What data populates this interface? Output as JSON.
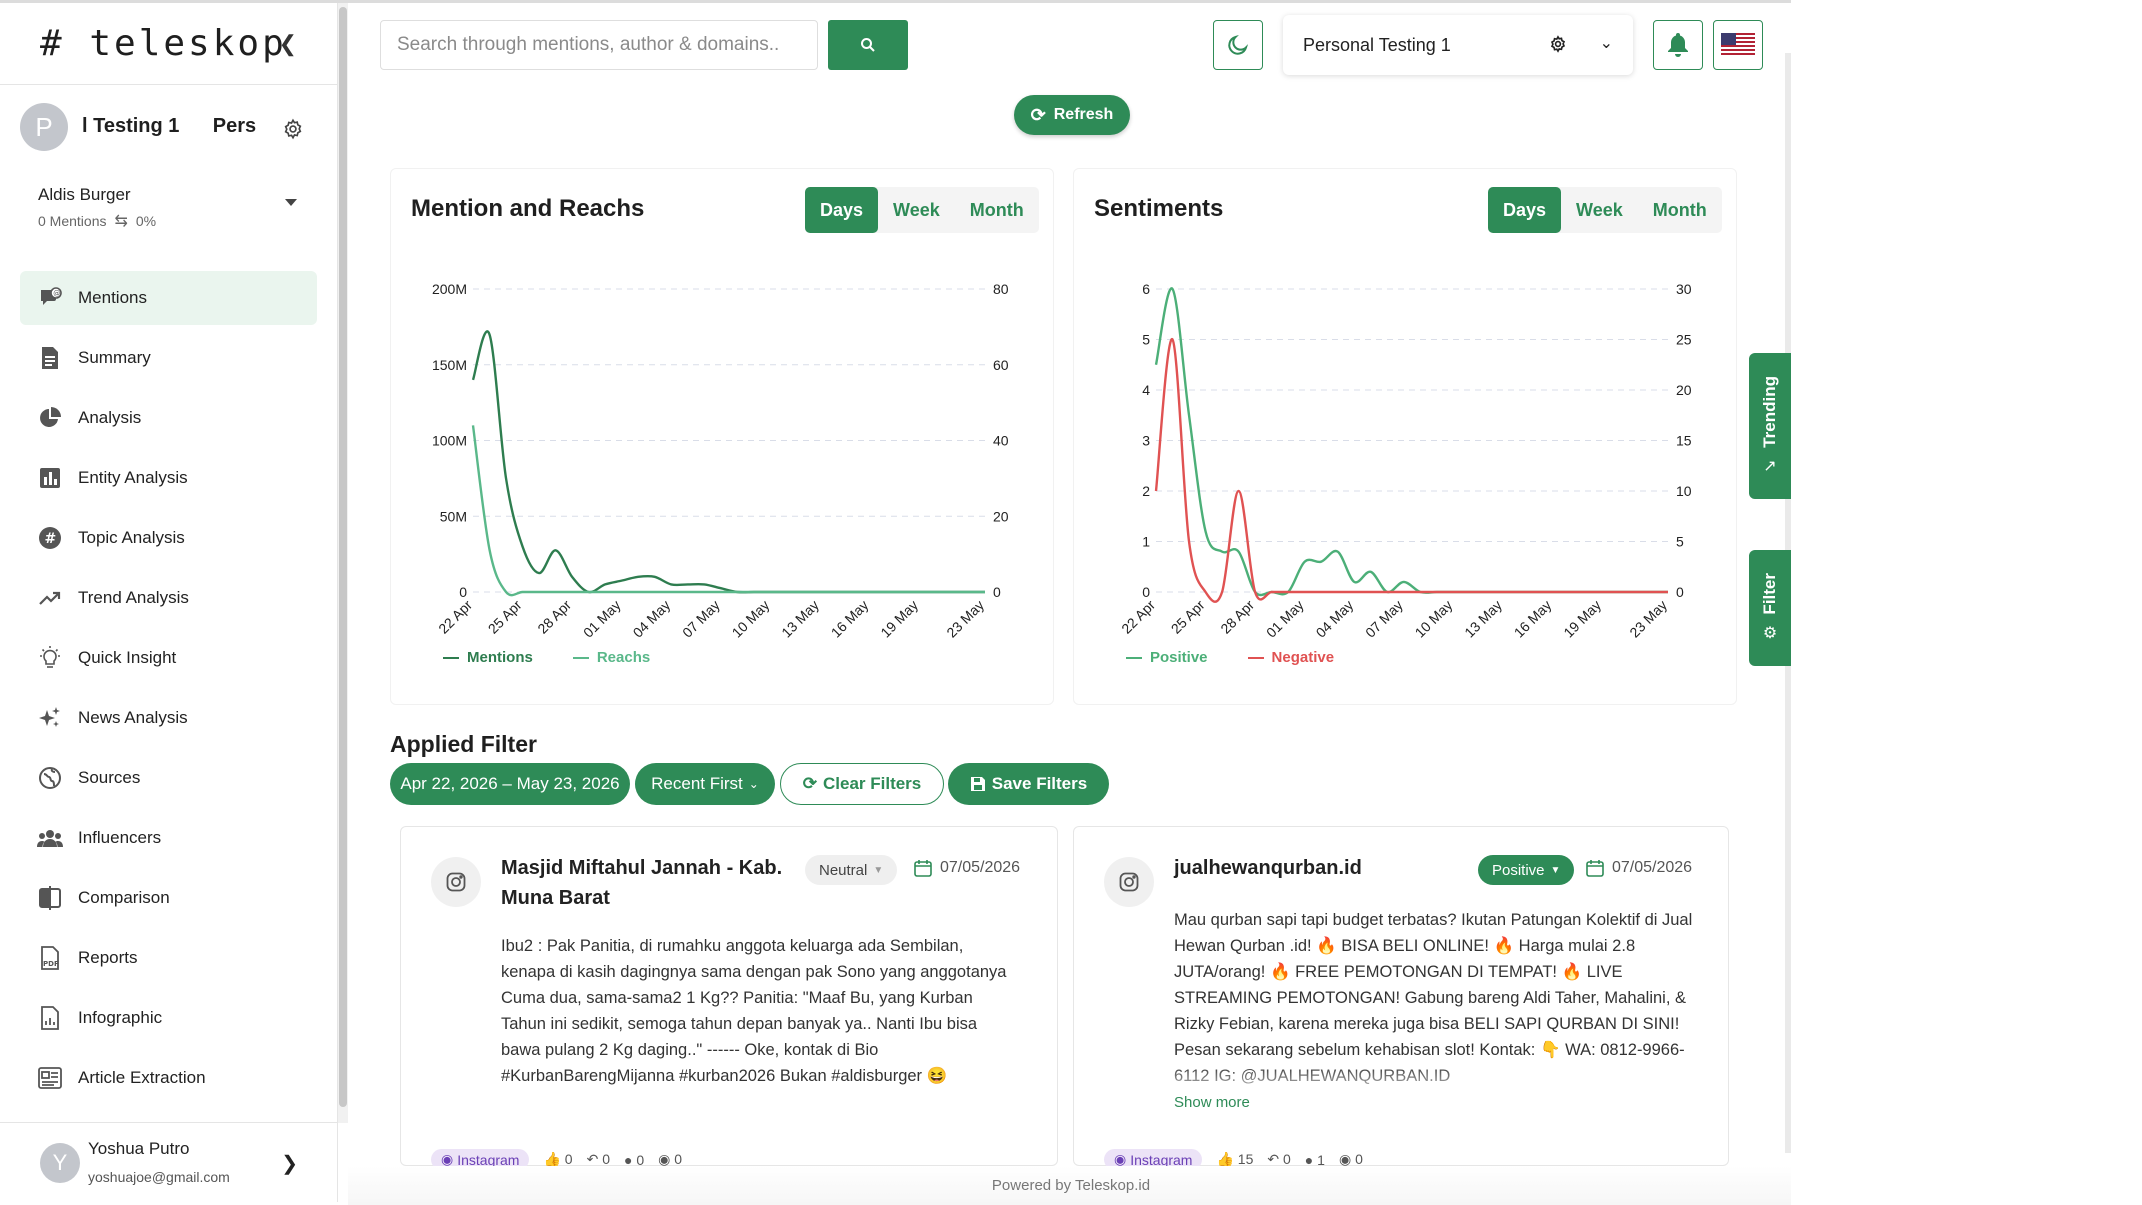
{
  "sidebar": {
    "logo": "# teleskop",
    "collapse_icon": "chevron-left-icon",
    "project": {
      "avatar_letter": "P",
      "name": "l Testing 1      Pers"
    },
    "brand": {
      "name": "Aldis Burger",
      "mentions": "0 Mentions",
      "percent": "0%"
    },
    "items": [
      {
        "label": "Mentions",
        "icon": "mentions-icon",
        "active": true
      },
      {
        "label": "Summary",
        "icon": "document-icon"
      },
      {
        "label": "Analysis",
        "icon": "pie-chart-icon"
      },
      {
        "label": "Entity Analysis",
        "icon": "bar-chart-icon"
      },
      {
        "label": "Topic Analysis",
        "icon": "hashtag-icon"
      },
      {
        "label": "Trend Analysis",
        "icon": "trend-icon"
      },
      {
        "label": "Quick Insight",
        "icon": "lightbulb-icon"
      },
      {
        "label": "News Analysis",
        "icon": "sparkle-icon"
      },
      {
        "label": "Sources",
        "icon": "globe-icon"
      },
      {
        "label": "Influencers",
        "icon": "users-icon"
      },
      {
        "label": "Comparison",
        "icon": "comparison-icon"
      },
      {
        "label": "Reports",
        "icon": "pdf-icon"
      },
      {
        "label": "Infographic",
        "icon": "infographic-icon"
      },
      {
        "label": "Article Extraction",
        "icon": "article-icon"
      }
    ],
    "user": {
      "avatar_letter": "Y",
      "name": "Yoshua Putro",
      "email": "yoshuajoe@gmail.com"
    }
  },
  "topbar": {
    "search_placeholder": "Search through mentions, author & domains..",
    "project_select": "Personal Testing 1",
    "refresh_label": "Refresh"
  },
  "charts": {
    "mention_reach": {
      "title": "Mention and Reachs",
      "periods": [
        "Days",
        "Week",
        "Month"
      ],
      "active_period": "Days",
      "legend": [
        "Mentions",
        "Reachs"
      ]
    },
    "sentiments": {
      "title": "Sentiments",
      "periods": [
        "Days",
        "Week",
        "Month"
      ],
      "active_period": "Days",
      "legend": [
        "Positive",
        "Negative"
      ]
    }
  },
  "chart_data": [
    {
      "type": "line",
      "title": "Mention and Reachs",
      "x": [
        "22 Apr",
        "23 Apr",
        "24 Apr",
        "25 Apr",
        "26 Apr",
        "27 Apr",
        "28 Apr",
        "29 Apr",
        "30 Apr",
        "01 May",
        "02 May",
        "03 May",
        "04 May",
        "05 May",
        "06 May",
        "07 May",
        "08 May",
        "09 May",
        "10 May",
        "11 May",
        "12 May",
        "13 May",
        "14 May",
        "15 May",
        "16 May",
        "17 May",
        "18 May",
        "19 May",
        "20 May",
        "21 May",
        "22 May",
        "23 May"
      ],
      "x_tick_labels": [
        "22 Apr",
        "25 Apr",
        "28 Apr",
        "01 May",
        "04 May",
        "07 May",
        "10 May",
        "13 May",
        "16 May",
        "19 May",
        "23 May"
      ],
      "y_left_ticks": [
        "0",
        "50M",
        "100M",
        "150M",
        "200M"
      ],
      "y_right_ticks": [
        "0",
        "20",
        "40",
        "60",
        "80"
      ],
      "ylim_left": [
        0,
        200000000
      ],
      "ylim_right": [
        0,
        80
      ],
      "series": [
        {
          "name": "Mentions",
          "axis": "right",
          "color": "#2e7d4f",
          "values": [
            56,
            68,
            30,
            12,
            5,
            11,
            4,
            0,
            2,
            3,
            4,
            4,
            2,
            2,
            2,
            1,
            0,
            0,
            0,
            0,
            0,
            0,
            0,
            0,
            0,
            0,
            0,
            0,
            0,
            0,
            0,
            0
          ]
        },
        {
          "name": "Reachs",
          "axis": "left",
          "color": "#5ab88a",
          "values": [
            110000000,
            28000000,
            0,
            0,
            0,
            0,
            0,
            0,
            0,
            0,
            0,
            0,
            0,
            0,
            0,
            0,
            0,
            0,
            0,
            0,
            0,
            0,
            0,
            0,
            0,
            0,
            0,
            0,
            0,
            0,
            0,
            0
          ]
        }
      ],
      "grid": true,
      "legend_position": "bottom-left"
    },
    {
      "type": "line",
      "title": "Sentiments",
      "x": [
        "22 Apr",
        "23 Apr",
        "24 Apr",
        "25 Apr",
        "26 Apr",
        "27 Apr",
        "28 Apr",
        "29 Apr",
        "30 Apr",
        "01 May",
        "02 May",
        "03 May",
        "04 May",
        "05 May",
        "06 May",
        "07 May",
        "08 May",
        "09 May",
        "10 May",
        "11 May",
        "12 May",
        "13 May",
        "14 May",
        "15 May",
        "16 May",
        "17 May",
        "18 May",
        "19 May",
        "20 May",
        "21 May",
        "22 May",
        "23 May"
      ],
      "x_tick_labels": [
        "22 Apr",
        "25 Apr",
        "28 Apr",
        "01 May",
        "04 May",
        "07 May",
        "10 May",
        "13 May",
        "16 May",
        "19 May",
        "23 May"
      ],
      "y_left_ticks": [
        "0",
        "1",
        "2",
        "3",
        "4",
        "5",
        "6"
      ],
      "y_right_ticks": [
        "0",
        "5",
        "10",
        "15",
        "20",
        "25",
        "30"
      ],
      "ylim_left": [
        0,
        6
      ],
      "ylim_right": [
        0,
        30
      ],
      "series": [
        {
          "name": "Positive",
          "color": "#4caf78",
          "values": [
            4.5,
            6,
            3.5,
            1.2,
            0.8,
            0.8,
            0,
            0,
            0,
            0.6,
            0.6,
            0.8,
            0.2,
            0.4,
            0,
            0.2,
            0,
            0,
            0,
            0,
            0,
            0,
            0,
            0,
            0,
            0,
            0,
            0,
            0,
            0,
            0,
            0
          ]
        },
        {
          "name": "Negative",
          "color": "#e05252",
          "values": [
            2,
            5,
            1,
            0,
            0,
            2,
            0,
            0,
            0,
            0,
            0,
            0,
            0,
            0,
            0,
            0,
            0,
            0,
            0,
            0,
            0,
            0,
            0,
            0,
            0,
            0,
            0,
            0,
            0,
            0,
            0,
            0
          ]
        }
      ],
      "grid": true,
      "legend_position": "bottom-left"
    }
  ],
  "side_tabs": {
    "trending": "Trending",
    "filter": "Filter"
  },
  "filters": {
    "title": "Applied Filter",
    "date_range": "Apr 22, 2026 – May 23, 2026",
    "sort": "Recent First",
    "clear_label": "Clear Filters",
    "save_label": "Save Filters"
  },
  "mentions": [
    {
      "author": "Masjid Miftahul Jannah - Kab. Muna Barat",
      "sentiment": "Neutral",
      "date": "07/05/2026",
      "text": "Ibu2 : Pak Panitia, di rumahku anggota keluarga ada Sembilan, kenapa di kasih dagingnya sama dengan pak Sono yang anggotanya Cuma dua, sama-sama2 1 Kg?? Panitia: \"Maaf Bu, yang Kurban Tahun ini sedikit, semoga tahun depan banyak ya.. Nanti Ibu bisa bawa pulang 2 Kg daging..\" ------ Oke, kontak di Bio #KurbanBarengMijanna #kurban2026 Bukan #aldisburger 😆",
      "platform": "Instagram",
      "likes": "0",
      "shares": "0",
      "comments": "0",
      "views": "0"
    },
    {
      "author": "jualhewanqurban.id",
      "sentiment": "Positive",
      "date": "07/05/2026",
      "text": "Mau qurban sapi tapi budget terbatas? Ikutan Patungan Kolektif di Jual Hewan Qurban .id! 🔥 BISA BELI ONLINE! 🔥 Harga mulai 2.8 JUTA/orang! 🔥 FREE PEMOTONGAN DI TEMPAT! 🔥 LIVE STREAMING PEMOTONGAN! Gabung bareng Aldi Taher, Mahalini, & Rizky Febian, karena mereka juga bisa BELI SAPI QURBAN DI SINI! Pesan sekarang sebelum kehabisan slot! Kontak: 👇 WA: 0812-9966-6112 IG: @JUALHEWANQURBAN.ID",
      "show_more": "Show more",
      "platform": "Instagram",
      "likes": "15",
      "shares": "0",
      "comments": "1",
      "views": "0"
    }
  ],
  "footer": {
    "powered": "Powered by Teleskop.id"
  },
  "colors": {
    "accent": "#2e8b57",
    "negative": "#e05252"
  }
}
